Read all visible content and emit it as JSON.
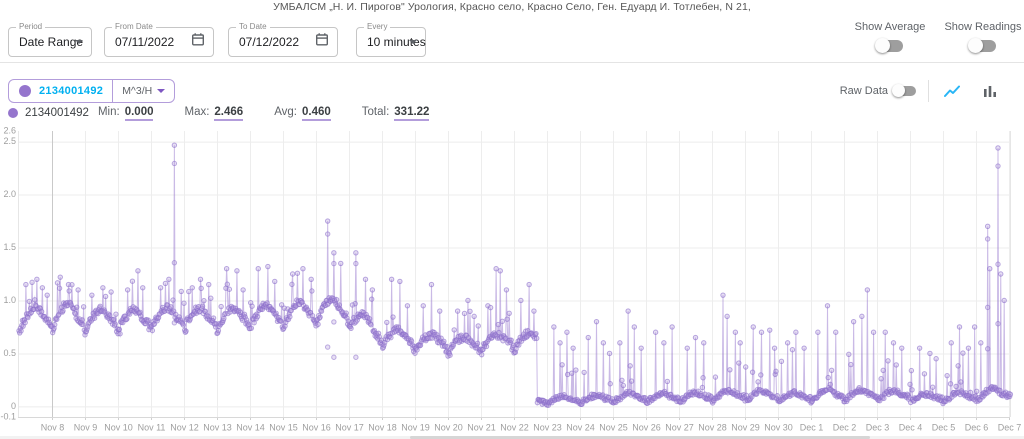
{
  "header": {
    "title": "УМБАЛСМ „Н. И. Пирогов\" Урология, Красно село, Красно Село, Ген. Едуард И. Тотлебен, N 21,"
  },
  "filters": {
    "period": {
      "label": "Period",
      "value": "Date Range"
    },
    "from_date": {
      "label": "From Date",
      "value": "07/11/2022"
    },
    "to_date": {
      "label": "To Date",
      "value": "07/12/2022"
    },
    "every": {
      "label": "Every",
      "value": "10 minutes"
    }
  },
  "toggles": {
    "show_average": {
      "label": "Show Average",
      "on": false
    },
    "show_readings": {
      "label": "Show Readings",
      "on": false
    }
  },
  "sensor_chip": {
    "id": "2134001492",
    "unit": "M^3/H"
  },
  "chart_controls": {
    "raw_data_label": "Raw Data",
    "raw_data_on": false
  },
  "legend": {
    "id": "2134001492",
    "min_label": "Min:",
    "max_label": "Max:",
    "avg_label": "Avg:",
    "total_label": "Total:"
  },
  "colors": {
    "series": "#9575cd",
    "chip_border": "#b39ddb",
    "id_text": "#00b0f0",
    "line_icon": "#29b6f6",
    "grid": "#ececec",
    "axis_text": "#9e9e9e"
  },
  "chart_data": {
    "type": "line",
    "title": "",
    "xlabel": "",
    "ylabel": "",
    "ylim": [
      -0.1,
      2.6
    ],
    "grid": true,
    "legend_position": "top-left",
    "series": [
      {
        "name": "2134001492",
        "unit": "M^3/H",
        "color": "#9575cd",
        "stats": {
          "min": "0.000",
          "max": "2.466",
          "avg": "0.460",
          "total": "331.22"
        }
      }
    ],
    "y_tick_values": [
      -0.1,
      0,
      0.5,
      1.0,
      1.5,
      2.0,
      2.5,
      2.6
    ],
    "y_tick_labels": [
      "-0.1",
      "0",
      "0.5",
      "1.0",
      "1.5",
      "2.0",
      "2.5",
      "2.6"
    ],
    "y_grid": [
      0,
      0.5,
      1.0,
      1.5,
      2.0,
      2.5
    ],
    "x_labels": [
      "Nov 8",
      "Nov 9",
      "Nov 10",
      "Nov 11",
      "Nov 12",
      "Nov 13",
      "Nov 14",
      "Nov 15",
      "Nov 16",
      "Nov 17",
      "Nov 18",
      "Nov 19",
      "Nov 20",
      "Nov 21",
      "Nov 22",
      "Nov 23",
      "Nov 24",
      "Nov 25",
      "Nov 26",
      "Nov 27",
      "Nov 28",
      "Nov 29",
      "Nov 30",
      "Dec 1",
      "Dec 2",
      "Dec 3",
      "Dec 4",
      "Dec 5",
      "Dec 6",
      "Dec 7"
    ],
    "sampling": "10 minutes",
    "render_points_per_day": 48,
    "days": [
      {
        "label": "",
        "b0": 0.76,
        "b1": 0.8,
        "amp": 0.16,
        "spikes": [
          [
            0.2,
            1.15
          ],
          [
            0.55,
            1.2
          ],
          [
            0.7,
            1.12
          ],
          [
            0.85,
            1.05
          ]
        ]
      },
      {
        "label": "Nov 8",
        "b0": 0.78,
        "b1": 0.8,
        "amp": 0.18,
        "spikes": [
          [
            0.25,
            1.22
          ],
          [
            0.5,
            1.15
          ],
          [
            0.8,
            1.1
          ]
        ]
      },
      {
        "label": "Nov 9",
        "b0": 0.76,
        "b1": 0.79,
        "amp": 0.14,
        "spikes": [
          [
            0.2,
            1.05
          ],
          [
            0.55,
            1.12
          ],
          [
            0.8,
            1.08
          ]
        ]
      },
      {
        "label": "Nov 10",
        "b0": 0.76,
        "b1": 0.8,
        "amp": 0.14,
        "spikes": [
          [
            0.3,
            1.1
          ],
          [
            0.6,
            1.28
          ],
          [
            0.75,
            1.12
          ]
        ]
      },
      {
        "label": "Nov 11",
        "b0": 0.78,
        "b1": 0.81,
        "amp": 0.14,
        "spikes": [
          [
            0.3,
            1.12
          ],
          [
            0.55,
            1.2
          ],
          [
            0.7,
            2.466
          ]
        ]
      },
      {
        "label": "Nov 12",
        "b0": 0.78,
        "b1": 0.81,
        "amp": 0.13,
        "spikes": [
          [
            0.25,
            1.12
          ],
          [
            0.5,
            1.2
          ],
          [
            0.75,
            1.15
          ]
        ]
      },
      {
        "label": "Nov 13",
        "b0": 0.77,
        "b1": 0.81,
        "amp": 0.14,
        "spikes": [
          [
            0.3,
            1.3
          ],
          [
            0.6,
            1.28
          ],
          [
            0.8,
            1.1
          ]
        ]
      },
      {
        "label": "Nov 14",
        "b0": 0.78,
        "b1": 0.83,
        "amp": 0.15,
        "spikes": [
          [
            0.25,
            1.3
          ],
          [
            0.55,
            1.32
          ],
          [
            0.75,
            1.18
          ]
        ]
      },
      {
        "label": "Nov 15",
        "b0": 0.8,
        "b1": 0.86,
        "amp": 0.16,
        "spikes": [
          [
            0.3,
            1.25
          ],
          [
            0.6,
            1.3
          ],
          [
            0.85,
            1.2
          ]
        ]
      },
      {
        "label": "Nov 16",
        "b0": 0.84,
        "b1": 0.86,
        "amp": 0.17,
        "spikes": [
          [
            0.36,
            1.75
          ],
          [
            0.55,
            1.45
          ],
          [
            0.75,
            1.35
          ]
        ]
      },
      {
        "label": "Nov 17",
        "b0": 0.8,
        "b1": 0.64,
        "amp": 0.13,
        "spikes": [
          [
            0.2,
            1.45
          ],
          [
            0.5,
            1.2
          ],
          [
            0.7,
            1.1
          ]
        ]
      },
      {
        "label": "Nov 18",
        "b0": 0.62,
        "b1": 0.6,
        "amp": 0.11,
        "spikes": [
          [
            0.3,
            1.2
          ],
          [
            0.55,
            1.18
          ],
          [
            0.78,
            0.95
          ]
        ]
      },
      {
        "label": "Nov 19",
        "b0": 0.57,
        "b1": 0.6,
        "amp": 0.09,
        "spikes": [
          [
            0.25,
            0.95
          ],
          [
            0.5,
            1.15
          ],
          [
            0.75,
            0.9
          ]
        ]
      },
      {
        "label": "Nov 20",
        "b0": 0.56,
        "b1": 0.58,
        "amp": 0.08,
        "spikes": [
          [
            0.3,
            0.9
          ],
          [
            0.6,
            1.0
          ],
          [
            0.8,
            0.85
          ]
        ]
      },
      {
        "label": "Nov 21",
        "b0": 0.56,
        "b1": 0.6,
        "amp": 0.09,
        "spikes": [
          [
            0.2,
            0.95
          ],
          [
            0.45,
            1.3
          ],
          [
            0.58,
            1.28
          ],
          [
            0.78,
            1.1
          ]
        ]
      },
      {
        "label": "Nov 22",
        "b0": 0.58,
        "b1": 0.62,
        "amp": 0.1,
        "spikes": [
          [
            0.2,
            1.0
          ],
          [
            0.45,
            1.15
          ],
          [
            0.6,
            0.9
          ]
        ],
        "drop": [
          0.7,
          0.035
        ]
      },
      {
        "label": "Nov 23",
        "b0": 0.04,
        "b1": 0.06,
        "amp": 0.05,
        "spikes": [
          [
            0.2,
            0.75
          ],
          [
            0.4,
            0.6
          ],
          [
            0.6,
            0.7
          ],
          [
            0.8,
            0.55
          ]
        ]
      },
      {
        "label": "Nov 24",
        "b0": 0.04,
        "b1": 0.07,
        "amp": 0.05,
        "spikes": [
          [
            0.25,
            0.65
          ],
          [
            0.5,
            0.8
          ],
          [
            0.7,
            0.6
          ],
          [
            0.9,
            0.5
          ]
        ]
      },
      {
        "label": "Nov 25",
        "b0": 0.05,
        "b1": 0.08,
        "amp": 0.06,
        "spikes": [
          [
            0.2,
            0.6
          ],
          [
            0.45,
            0.9
          ],
          [
            0.65,
            0.75
          ],
          [
            0.85,
            0.55
          ]
        ]
      },
      {
        "label": "Nov 26",
        "b0": 0.05,
        "b1": 0.08,
        "amp": 0.06,
        "spikes": [
          [
            0.3,
            0.7
          ],
          [
            0.55,
            0.6
          ],
          [
            0.8,
            0.75
          ]
        ]
      },
      {
        "label": "Nov 27",
        "b0": 0.05,
        "b1": 0.09,
        "amp": 0.06,
        "spikes": [
          [
            0.25,
            0.55
          ],
          [
            0.5,
            0.65
          ],
          [
            0.75,
            0.6
          ]
        ]
      },
      {
        "label": "Nov 28",
        "b0": 0.06,
        "b1": 0.1,
        "amp": 0.07,
        "spikes": [
          [
            0.33,
            1.05
          ],
          [
            0.45,
            0.85
          ],
          [
            0.7,
            0.7
          ],
          [
            0.85,
            0.6
          ]
        ]
      },
      {
        "label": "Nov 29",
        "b0": 0.06,
        "b1": 0.1,
        "amp": 0.07,
        "spikes": [
          [
            0.25,
            0.75
          ],
          [
            0.5,
            0.7
          ],
          [
            0.75,
            0.72
          ],
          [
            0.9,
            0.55
          ]
        ]
      },
      {
        "label": "Nov 30",
        "b0": 0.05,
        "b1": 0.09,
        "amp": 0.06,
        "spikes": [
          [
            0.3,
            0.6
          ],
          [
            0.55,
            0.7
          ],
          [
            0.8,
            0.55
          ]
        ]
      },
      {
        "label": "Dec 1",
        "b0": 0.06,
        "b1": 0.1,
        "amp": 0.08,
        "spikes": [
          [
            0.2,
            0.7
          ],
          [
            0.5,
            0.95
          ],
          [
            0.75,
            0.7
          ]
        ]
      },
      {
        "label": "Dec 2",
        "b0": 0.06,
        "b1": 0.1,
        "amp": 0.08,
        "spikes": [
          [
            0.3,
            0.8
          ],
          [
            0.55,
            0.85
          ],
          [
            0.7,
            1.1
          ],
          [
            0.9,
            0.7
          ]
        ]
      },
      {
        "label": "Dec 3",
        "b0": 0.06,
        "b1": 0.1,
        "amp": 0.07,
        "spikes": [
          [
            0.25,
            0.7
          ],
          [
            0.5,
            0.6
          ],
          [
            0.75,
            0.55
          ]
        ]
      },
      {
        "label": "Dec 4",
        "b0": 0.05,
        "b1": 0.08,
        "amp": 0.05,
        "spikes": [
          [
            0.3,
            0.55
          ],
          [
            0.6,
            0.5
          ],
          [
            0.8,
            0.45
          ]
        ]
      },
      {
        "label": "Dec 5",
        "b0": 0.05,
        "b1": 0.09,
        "amp": 0.06,
        "spikes": [
          [
            0.25,
            0.6
          ],
          [
            0.5,
            0.75
          ],
          [
            0.78,
            0.55
          ],
          [
            0.95,
            0.75
          ]
        ]
      },
      {
        "label": "Dec 6",
        "b0": 0.06,
        "b1": 0.12,
        "amp": 0.08,
        "spikes": [
          [
            0.15,
            0.6
          ],
          [
            0.36,
            1.7
          ],
          [
            0.42,
            1.3
          ],
          [
            0.67,
            2.44
          ],
          [
            0.75,
            1.25
          ],
          [
            0.85,
            1.0
          ]
        ]
      },
      {
        "label": "Dec 7",
        "b0": 0.12,
        "b1": 0.15,
        "amp": 0.05,
        "spikes": [],
        "span": 0.05
      }
    ]
  }
}
